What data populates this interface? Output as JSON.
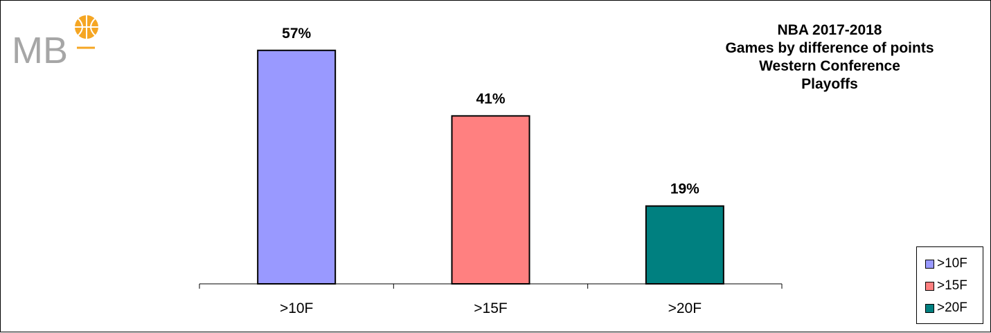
{
  "brand": {
    "logo_text": "MB"
  },
  "title_lines": [
    "NBA 2017-2018",
    "Games by difference of points",
    "Western Conference",
    "Playoffs"
  ],
  "colors": {
    "bar_1": "#9999ff",
    "bar_2": "#ff8080",
    "bar_3": "#008080",
    "logo_grey": "#a6a6a6",
    "logo_orange": "#f5a623"
  },
  "chart_data": {
    "type": "bar",
    "title": "NBA 2017-2018 Games by difference of points Western Conference Playoffs",
    "categories": [
      ">10F",
      ">15F",
      ">20F"
    ],
    "values": [
      57,
      41,
      19
    ],
    "value_labels": [
      "57%",
      "41%",
      "19%"
    ],
    "unit": "%",
    "ylim": [
      0,
      60
    ],
    "grid": false,
    "show_y_axis": false,
    "legend": {
      "position": "bottom-right",
      "entries": [
        ">10F",
        ">15F",
        ">20F"
      ]
    }
  }
}
